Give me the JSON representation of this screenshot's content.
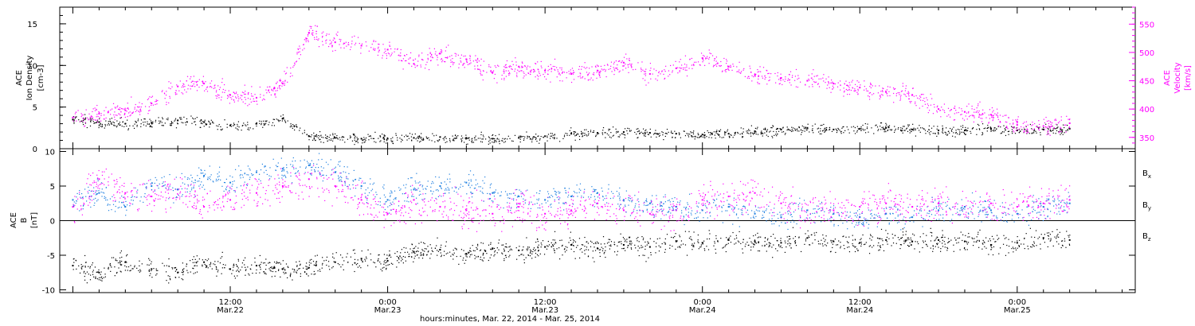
{
  "colors": {
    "black": "#000000",
    "magenta": "#ff00ff",
    "blue": "#1e7fe0"
  },
  "x_axis": {
    "label": "hours:minutes, Mar. 22, 2014 - Mar. 25, 2014",
    "ticks": [
      {
        "t": 12,
        "time": "12:00",
        "date": "Mar.22"
      },
      {
        "t": 24,
        "time": "0:00",
        "date": "Mar.23"
      },
      {
        "t": 36,
        "time": "12:00",
        "date": "Mar.23"
      },
      {
        "t": 48,
        "time": "0:00",
        "date": "Mar.24"
      },
      {
        "t": 60,
        "time": "12:00",
        "date": "Mar.24"
      },
      {
        "t": 72,
        "time": "0:00",
        "date": "Mar.25"
      }
    ]
  },
  "chart_data": [
    {
      "type": "scatter",
      "ylabel": [
        "ACE",
        "Ion Density",
        "[cm-3]"
      ],
      "ylim": [
        0,
        17
      ],
      "yticks": [
        0,
        5,
        10,
        15
      ],
      "xlim": [
        -1,
        81
      ],
      "y2label": [
        "ACE",
        "Velocity",
        "[km/s]"
      ],
      "y2lim": [
        330,
        580
      ],
      "y2ticks": [
        350,
        400,
        450,
        500,
        550
      ],
      "series": [
        {
          "color": "black",
          "axis": "left",
          "x": [
            0,
            2,
            4,
            6,
            8,
            10,
            12,
            14,
            16,
            18,
            20,
            22,
            24,
            26,
            28,
            30,
            32,
            34,
            36,
            38,
            40,
            42,
            44,
            46,
            48,
            50,
            52,
            54,
            56,
            58,
            60,
            62,
            64,
            66,
            68,
            70,
            72,
            74,
            76
          ],
          "y": [
            3.5,
            3.2,
            3.0,
            3.1,
            3.4,
            3.2,
            2.8,
            3.0,
            3.6,
            1.5,
            1.3,
            1.2,
            1.2,
            1.3,
            1.4,
            1.3,
            1.2,
            1.3,
            1.5,
            1.8,
            1.9,
            2.0,
            1.9,
            1.8,
            1.7,
            1.8,
            2.1,
            2.3,
            2.5,
            2.3,
            2.4,
            2.5,
            2.3,
            2.2,
            2.2,
            2.4,
            2.2,
            2.3,
            2.4
          ]
        },
        {
          "color": "magenta",
          "axis": "right",
          "x": [
            0,
            2,
            4,
            6,
            8,
            10,
            12,
            14,
            16,
            18,
            20,
            22,
            24,
            26,
            28,
            30,
            32,
            34,
            36,
            38,
            40,
            42,
            44,
            46,
            48,
            50,
            52,
            54,
            56,
            58,
            60,
            62,
            64,
            66,
            68,
            70,
            72,
            74,
            76
          ],
          "y": [
            385,
            392,
            398,
            410,
            440,
            445,
            425,
            420,
            445,
            535,
            518,
            512,
            505,
            480,
            498,
            488,
            465,
            475,
            468,
            462,
            468,
            482,
            462,
            472,
            490,
            475,
            460,
            455,
            450,
            445,
            438,
            430,
            425,
            400,
            395,
            390,
            372,
            370,
            375
          ]
        }
      ]
    },
    {
      "type": "scatter",
      "ylabel": [
        "ACE",
        "B",
        "[nT]"
      ],
      "ylim": [
        -10.4,
        10.4
      ],
      "yticks": [
        -10,
        -5,
        0,
        5,
        10
      ],
      "xlim": [
        -1,
        81
      ],
      "legend": [
        "Bx",
        "By",
        "Bz"
      ],
      "series": [
        {
          "name": "Bx",
          "color": "black",
          "x": [
            0,
            2,
            4,
            6,
            8,
            10,
            12,
            14,
            16,
            18,
            20,
            22,
            24,
            26,
            28,
            30,
            32,
            34,
            36,
            38,
            40,
            42,
            44,
            46,
            48,
            50,
            52,
            54,
            56,
            58,
            60,
            62,
            64,
            66,
            68,
            70,
            72,
            74,
            76
          ],
          "y": [
            -6.5,
            -7.5,
            -6.0,
            -7.0,
            -7.5,
            -6.0,
            -7.0,
            -6.5,
            -7.0,
            -6.8,
            -6.0,
            -5.5,
            -5.8,
            -4.5,
            -4.2,
            -4.8,
            -4.0,
            -4.3,
            -3.8,
            -3.5,
            -4.0,
            -3.5,
            -3.8,
            -3.0,
            -3.2,
            -2.8,
            -3.0,
            -3.2,
            -2.5,
            -3.0,
            -3.2,
            -2.8,
            -3.0,
            -2.8,
            -3.0,
            -3.5,
            -3.2,
            -2.5,
            -2.8
          ]
        },
        {
          "name": "By",
          "color": "blue",
          "x": [
            0,
            2,
            4,
            6,
            8,
            10,
            12,
            14,
            16,
            18,
            20,
            22,
            24,
            26,
            28,
            30,
            32,
            34,
            36,
            38,
            40,
            42,
            44,
            46,
            48,
            50,
            52,
            54,
            56,
            58,
            60,
            62,
            64,
            66,
            68,
            70,
            72,
            74,
            76
          ],
          "y": [
            3.0,
            4.0,
            2.0,
            5.0,
            4.5,
            6.5,
            5.5,
            7.0,
            7.5,
            8.0,
            7.0,
            5.0,
            3.0,
            4.5,
            5.0,
            5.5,
            4.0,
            3.5,
            3.0,
            3.5,
            4.0,
            3.0,
            2.5,
            2.0,
            1.5,
            2.0,
            1.0,
            0.5,
            1.5,
            1.0,
            0.5,
            1.0,
            0.5,
            1.5,
            2.0,
            1.5,
            1.0,
            2.0,
            2.5
          ]
        },
        {
          "name": "Bz",
          "color": "magenta",
          "x": [
            0,
            2,
            4,
            6,
            8,
            10,
            12,
            14,
            16,
            18,
            20,
            22,
            24,
            26,
            28,
            30,
            32,
            34,
            36,
            38,
            40,
            42,
            44,
            46,
            48,
            50,
            52,
            54,
            56,
            58,
            60,
            62,
            64,
            66,
            68,
            70,
            72,
            74,
            76
          ],
          "y": [
            2.0,
            6.0,
            4.0,
            3.5,
            4.5,
            2.0,
            3.0,
            4.0,
            5.0,
            6.0,
            5.0,
            3.0,
            1.0,
            3.0,
            2.0,
            1.5,
            1.0,
            2.0,
            1.0,
            1.5,
            2.5,
            1.5,
            1.0,
            1.5,
            3.0,
            3.5,
            4.0,
            2.5,
            1.5,
            1.5,
            2.0,
            2.5,
            2.0,
            2.5,
            2.0,
            2.5,
            2.0,
            2.5,
            3.0
          ]
        }
      ]
    }
  ]
}
